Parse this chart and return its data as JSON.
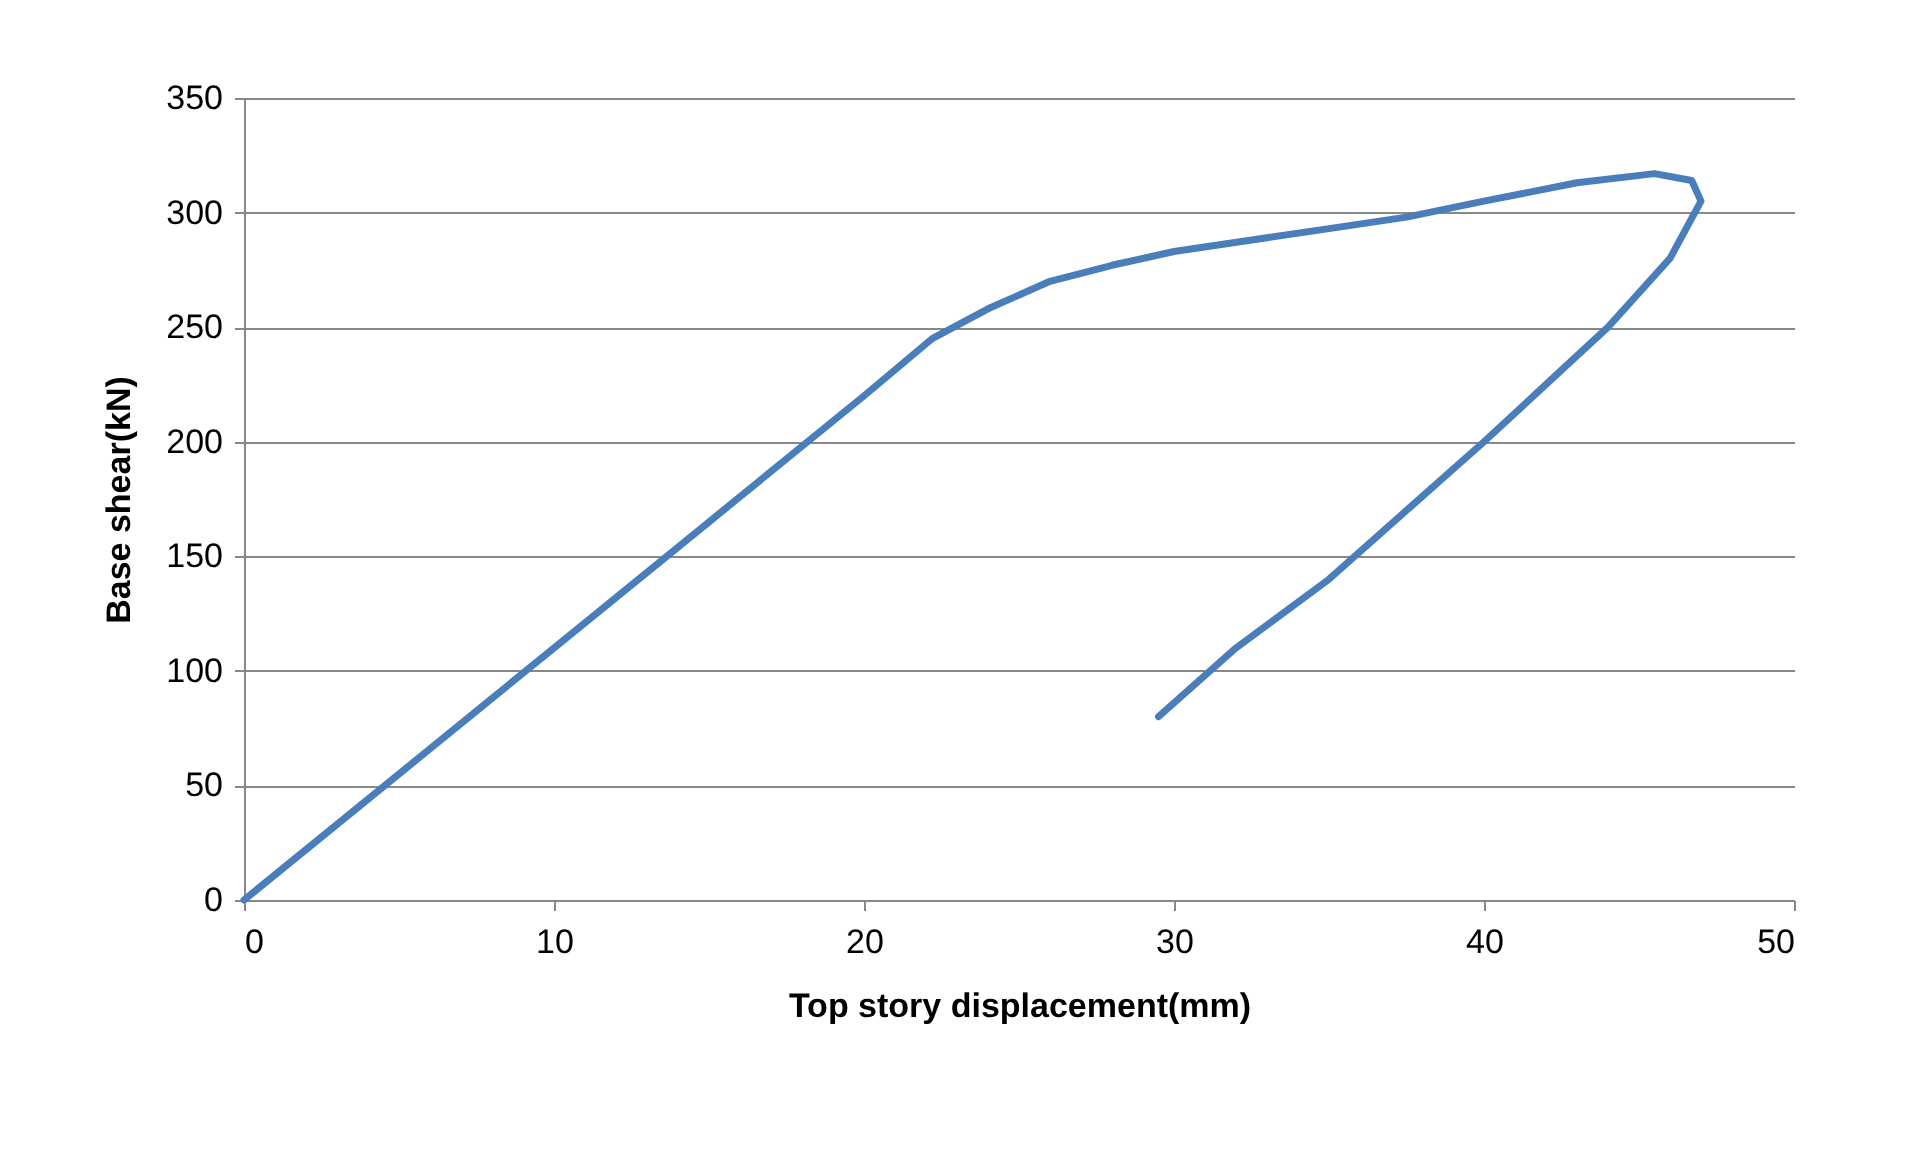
{
  "chart_data": {
    "type": "line",
    "xlabel": "Top story displacement(mm)",
    "ylabel": "Base shear(kN)",
    "x": [
      0,
      5,
      10,
      15,
      20,
      22.2,
      24,
      26,
      28,
      30,
      33,
      35,
      37.5,
      40,
      43,
      45.5,
      46.7,
      47,
      46,
      44,
      42,
      40,
      37.5,
      35,
      32,
      29.5
    ],
    "series": [
      {
        "color": "#4a7ebb",
        "values": [
          0,
          55,
          110,
          165,
          220,
          245,
          258,
          270,
          277,
          283,
          289,
          293,
          298,
          305,
          313,
          317,
          314,
          305,
          280,
          250,
          225,
          200,
          170,
          140,
          110,
          80
        ]
      }
    ],
    "xlim": [
      0,
      50
    ],
    "xticks": [
      0,
      10,
      20,
      30,
      40,
      50
    ],
    "ylim": [
      0,
      350
    ],
    "yticks": [
      0,
      50,
      100,
      150,
      200,
      250,
      300,
      350
    ],
    "grid": "y",
    "legend": false,
    "marker": "none",
    "line_style": "solid"
  }
}
